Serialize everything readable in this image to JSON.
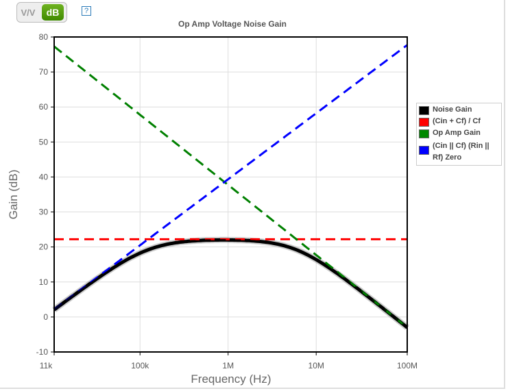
{
  "toggle": {
    "vv": "V/V",
    "db": "dB",
    "help": "?"
  },
  "colors": {
    "noise": "#000000",
    "red": "#ff0000",
    "green": "#008000",
    "blue": "#0000ff"
  },
  "chart_data": {
    "type": "line",
    "title": "Op Amp Voltage Noise Gain",
    "xlabel": "Frequency (Hz)",
    "ylabel": "Gain (dB)",
    "xscale": "log",
    "xlim": [
      10600,
      108000000
    ],
    "ylim": [
      -10,
      80
    ],
    "yticks": [
      "80",
      "70",
      "60",
      "50",
      "40",
      "30",
      "20",
      "10",
      "0",
      "-10"
    ],
    "yticks_values": [
      80,
      70,
      60,
      50,
      40,
      30,
      20,
      10,
      0,
      -10
    ],
    "xticks": [
      "11k",
      "100k",
      "1M",
      "10M",
      "100M"
    ],
    "xticks_values": [
      10600,
      100000,
      1000000,
      10000000,
      108000000
    ],
    "grid": true,
    "legend_position": "right",
    "series": [
      {
        "name": "Noise Gain",
        "style": "solid",
        "computed_from": "combination of other series"
      },
      {
        "name": "(Cin + Cf) / Cf",
        "style": "dashed",
        "x": [
          10600,
          108000000
        ],
        "y": [
          22.2,
          22.2
        ]
      },
      {
        "name": "Op Amp Gain",
        "style": "dashed",
        "x": [
          10600,
          108000000
        ],
        "y": [
          77.3,
          -3
        ]
      },
      {
        "name": "(Cin || Cf) (Rin || Rf) Zero",
        "style": "dashed",
        "x": [
          10600,
          108000000
        ],
        "y": [
          2.1,
          77.7
        ]
      }
    ]
  }
}
